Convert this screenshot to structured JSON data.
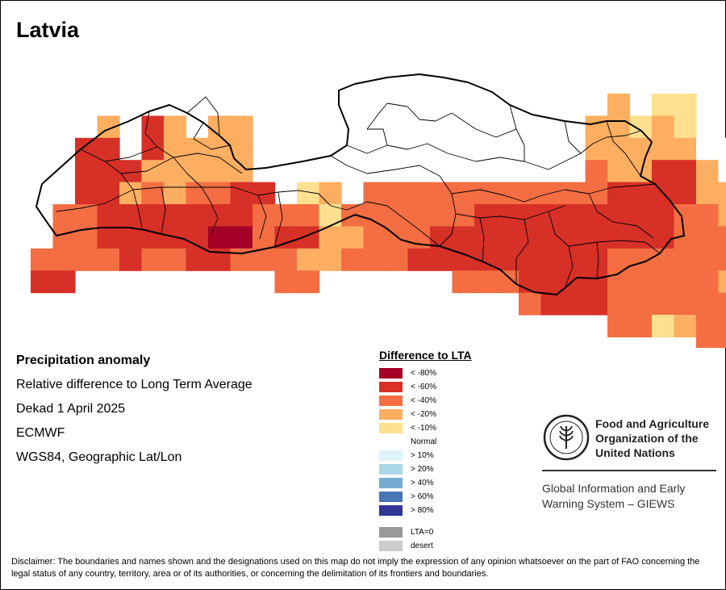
{
  "title": "Latvia",
  "info": {
    "line1": "Precipitation anomaly",
    "line2": "Relative difference to Long Term Average",
    "line3": "Dekad 1 April 2025",
    "line4": "ECMWF",
    "line5": "WGS84, Geographic Lat/Lon"
  },
  "legend": {
    "title": "Difference to LTA",
    "items": [
      {
        "label": "< -80%",
        "color": "#a50026"
      },
      {
        "label": "< -60%",
        "color": "#d73027"
      },
      {
        "label": "< -40%",
        "color": "#f46d43"
      },
      {
        "label": "< -20%",
        "color": "#fdae61"
      },
      {
        "label": "< -10%",
        "color": "#fee090"
      },
      {
        "label": "Normal",
        "color": "#ffffff"
      },
      {
        "label": "> 10%",
        "color": "#e0f3f8"
      },
      {
        "label": "> 20%",
        "color": "#abd9e9"
      },
      {
        "label": "> 40%",
        "color": "#74add1"
      },
      {
        "label": "> 60%",
        "color": "#4575b4"
      },
      {
        "label": "> 80%",
        "color": "#313695"
      }
    ],
    "extra": [
      {
        "label": "LTA=0",
        "color": "#999999"
      },
      {
        "label": "desert",
        "color": "#cccccc"
      }
    ]
  },
  "fao": {
    "name_line1": "Food and Agriculture",
    "name_line2": "Organization of the",
    "name_line3": "United Nations",
    "giews_line1": "Global Information and Early",
    "giews_line2": "Warning System – GIEWS"
  },
  "disclaimer": "Disclaimer: The boundaries and names shown and the designations used on this map do not imply the expression of any opinion whatsoever on the part of FAO concerning the legal status of any country, territory, area or of its authorities, or concerning the delimitation of its frontiers and boundaries."
}
